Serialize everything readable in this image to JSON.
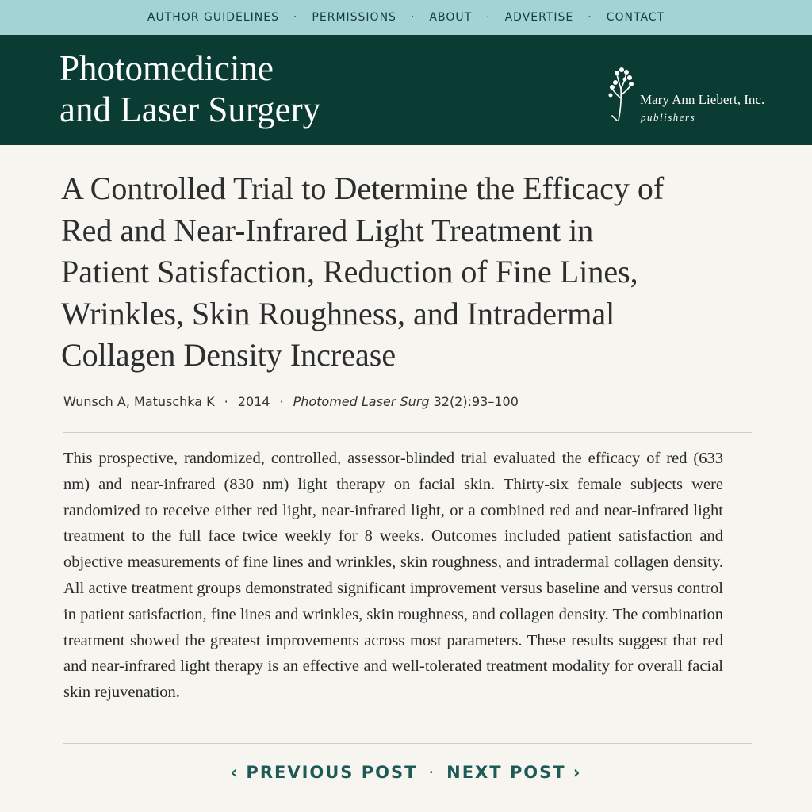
{
  "nav": {
    "links": [
      "AUTHOR GUIDELINES",
      "PERMISSIONS",
      "ABOUT",
      "ADVERTISE",
      "CONTACT"
    ]
  },
  "header": {
    "journal_lines": [
      "Photomedicine",
      "and Laser Surgery"
    ],
    "publisher": "Mary Ann Liebert, Inc.",
    "publisher_sub": "publishers"
  },
  "article": {
    "title_lines": [
      "A Controlled Trial to Determine the Efficacy of",
      "Red and Near-Infrared Light Treatment in",
      "Patient Satisfaction, Reduction of Fine Lines,",
      "Wrinkles, Skin Roughness, and Intradermal",
      "Collagen Density Increase"
    ],
    "authors": "Wunsch A, Matuschka K",
    "year": "2014",
    "journal": "Photomed Laser Surg",
    "citation": "32(2):93–100",
    "abstract": "This prospective, randomized, controlled, assessor-blinded trial evaluated the efficacy of red (633 nm) and near-infrared (830 nm) light therapy on facial skin. Thirty-six female subjects were randomized to receive either red light, near-infrared light, or a combined red and near-infrared light treatment to the full face twice weekly for 8 weeks. Outcomes included patient satisfaction and objective measurements of fine lines and wrinkles, skin roughness, and intradermal collagen density. All active treatment groups demonstrated significant improvement versus baseline and versus control in patient satisfaction, fine lines and wrinkles, skin roughness, and collagen density. The combination treatment showed the greatest improvements across most parameters. These results suggest that red and near-infrared light therapy is an effective and well-tolerated treatment modality for overall facial skin rejuvenation."
  },
  "pager": {
    "previous": "PREVIOUS POST",
    "next": "NEXT POST"
  }
}
